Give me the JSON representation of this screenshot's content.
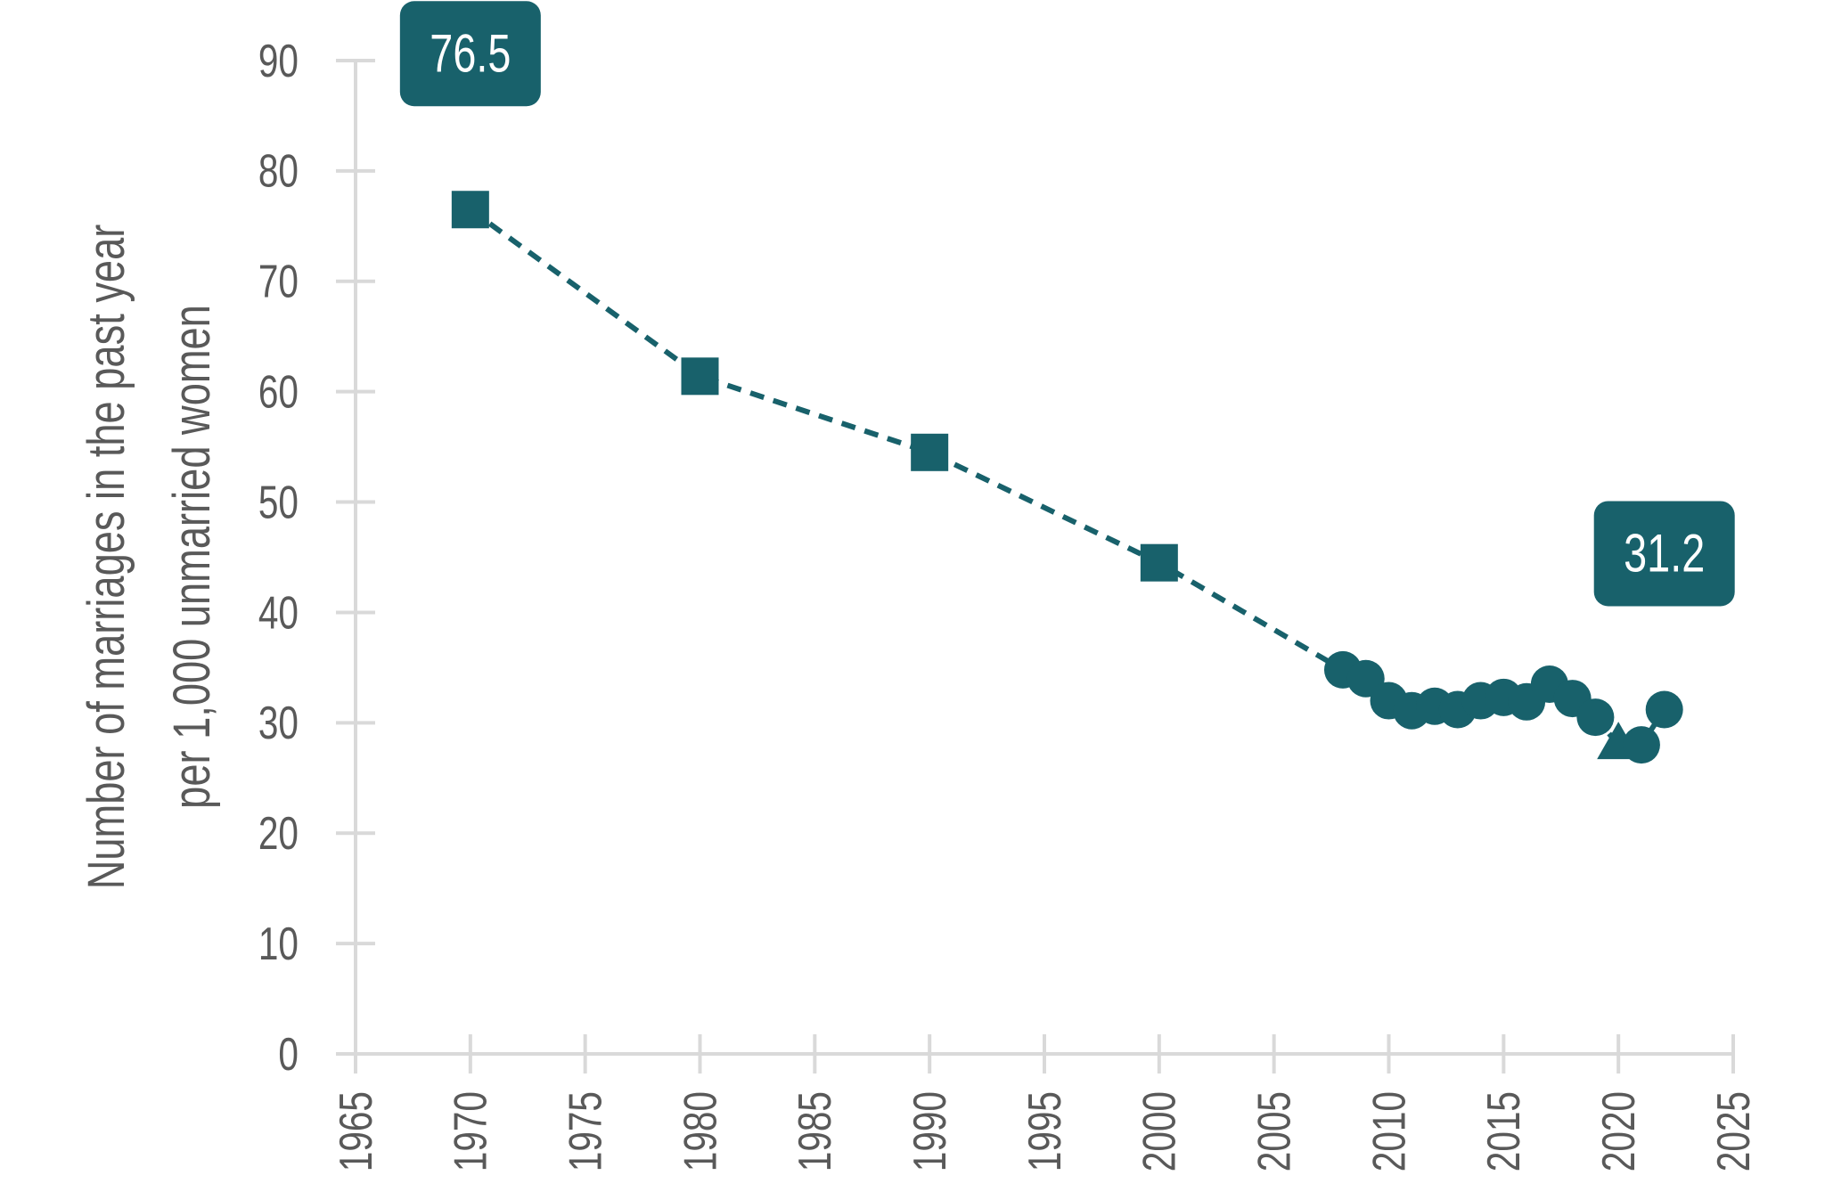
{
  "chart_data": {
    "type": "line",
    "title": "",
    "ylabel_lines": [
      "Number of marriages in the past year",
      "per 1,000 unmarried women"
    ],
    "xlabel": "",
    "xlim": [
      1965,
      2025
    ],
    "ylim": [
      0,
      90
    ],
    "x_ticks": [
      "1965",
      "1970",
      "1975",
      "1980",
      "1985",
      "1990",
      "1995",
      "2000",
      "2005",
      "2010",
      "2015",
      "2020",
      "2025"
    ],
    "y_ticks": [
      "0",
      "10",
      "20",
      "30",
      "40",
      "50",
      "60",
      "70",
      "80",
      "90"
    ],
    "grid": false,
    "legend": "none",
    "color": "#18616b",
    "line_style": "dashed",
    "points": [
      {
        "x": 1970,
        "y": 76.5,
        "marker": "square"
      },
      {
        "x": 1980,
        "y": 61.4,
        "marker": "square"
      },
      {
        "x": 1990,
        "y": 54.5,
        "marker": "square"
      },
      {
        "x": 2000,
        "y": 44.5,
        "marker": "square"
      },
      {
        "x": 2008,
        "y": 34.8,
        "marker": "circle"
      },
      {
        "x": 2009,
        "y": 34.0,
        "marker": "circle"
      },
      {
        "x": 2010,
        "y": 32.0,
        "marker": "circle"
      },
      {
        "x": 2011,
        "y": 31.1,
        "marker": "circle"
      },
      {
        "x": 2012,
        "y": 31.5,
        "marker": "circle"
      },
      {
        "x": 2013,
        "y": 31.2,
        "marker": "circle"
      },
      {
        "x": 2014,
        "y": 32.0,
        "marker": "circle"
      },
      {
        "x": 2015,
        "y": 32.3,
        "marker": "circle"
      },
      {
        "x": 2016,
        "y": 31.9,
        "marker": "circle"
      },
      {
        "x": 2017,
        "y": 33.5,
        "marker": "circle"
      },
      {
        "x": 2018,
        "y": 32.2,
        "marker": "circle"
      },
      {
        "x": 2019,
        "y": 30.5,
        "marker": "circle"
      },
      {
        "x": 2020,
        "y": 28.0,
        "marker": "triangle"
      },
      {
        "x": 2021,
        "y": 28.0,
        "marker": "circle"
      },
      {
        "x": 2022,
        "y": 31.2,
        "marker": "circle"
      }
    ],
    "callouts": [
      {
        "x": 1970,
        "text": "76.5"
      },
      {
        "x": 2022,
        "text": "31.2"
      }
    ]
  }
}
